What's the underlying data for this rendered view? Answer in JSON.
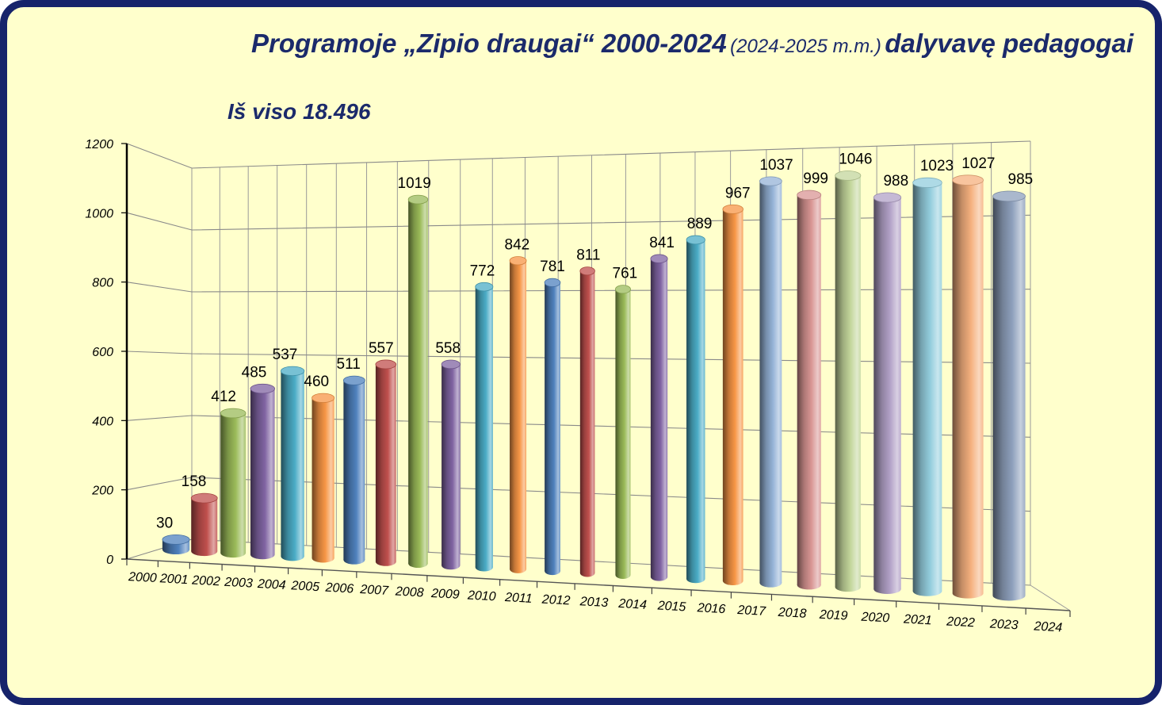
{
  "colors": {
    "frame": "#16236B",
    "panel": "#FFFFCC",
    "title": "#1B2A6B"
  },
  "chart_data": {
    "type": "bar",
    "three_d": true,
    "title": [
      "Programoje „Zipio draugai“ 2000-2024",
      "(2024-2025 m.m.)",
      "dalyvavę pedagogai"
    ],
    "subtitle": "Iš viso 18.496",
    "categories": [
      "2000",
      "2001",
      "2002",
      "2003",
      "2004",
      "2005",
      "2006",
      "2007",
      "2008",
      "2009",
      "2010",
      "2011",
      "2012",
      "2013",
      "2014",
      "2015",
      "2016",
      "2017",
      "2018",
      "2019",
      "2020",
      "2021",
      "2022",
      "2023",
      "2024"
    ],
    "values": [
      30,
      158,
      412,
      485,
      537,
      460,
      511,
      557,
      1019,
      558,
      772,
      842,
      781,
      811,
      761,
      841,
      889,
      967,
      1037,
      999,
      1046,
      988,
      1023,
      1027,
      985
    ],
    "data_labels": true,
    "ylim": [
      0,
      1200
    ],
    "yticks": [
      0,
      200,
      400,
      600,
      800,
      1000,
      1200
    ],
    "grid": true,
    "legend": "none",
    "colors": [
      "#4F81BD",
      "#C0504D",
      "#9BBB59",
      "#8064A2",
      "#4BACC6",
      "#F79646",
      "#4F81BD",
      "#C0504D",
      "#9BBB59",
      "#8064A2",
      "#4BACC6",
      "#F79646",
      "#4F81BD",
      "#C0504D",
      "#9BBB59",
      "#8064A2",
      "#4BACC6",
      "#F79646",
      "#95B3D7",
      "#D99694",
      "#C3D69B",
      "#B2A1C7",
      "#93CDDD",
      "#F5B07E",
      "#8EA0BC"
    ]
  }
}
